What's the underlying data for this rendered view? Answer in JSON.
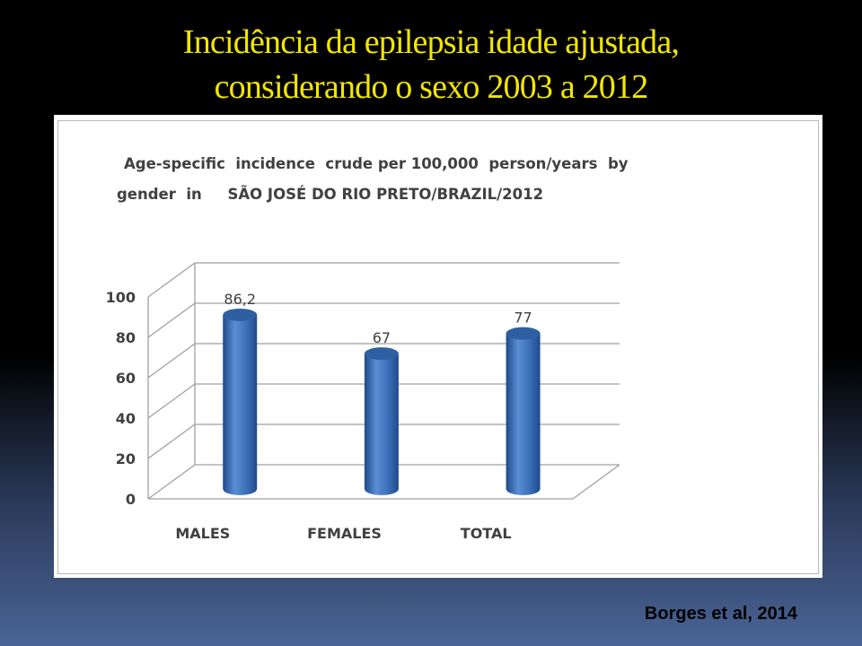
{
  "slide": {
    "title_line1": "Incidência da epilepsia idade ajustada,",
    "title_line2": "considerando o sexo 2003 a 2012",
    "citation": "Borges et al, 2014"
  },
  "colors": {
    "title": "#f2e600",
    "bar": "#3a6fb7",
    "bar_dark": "#1f4a8a",
    "bar_light": "#5b8fd4"
  },
  "chart_data": {
    "type": "bar",
    "title_line1": "Age-specific  incidence  crude per 100,000  person/years  by",
    "title_line2": "gender  in     SÃO JOSÉ DO RIO PRETO/BRAZIL/2012",
    "categories": [
      "MALES",
      "FEMALES",
      "TOTAL"
    ],
    "values": [
      86.2,
      67,
      77
    ],
    "data_labels": [
      "86,2",
      "67",
      "77"
    ],
    "ylim": [
      0,
      100
    ],
    "yticks": [
      0,
      20,
      40,
      60,
      80,
      100
    ],
    "ytick_labels": [
      "0",
      "20",
      "40",
      "60",
      "80",
      "100"
    ],
    "grid": true,
    "legend": "none",
    "style": "3d-cylinder"
  }
}
